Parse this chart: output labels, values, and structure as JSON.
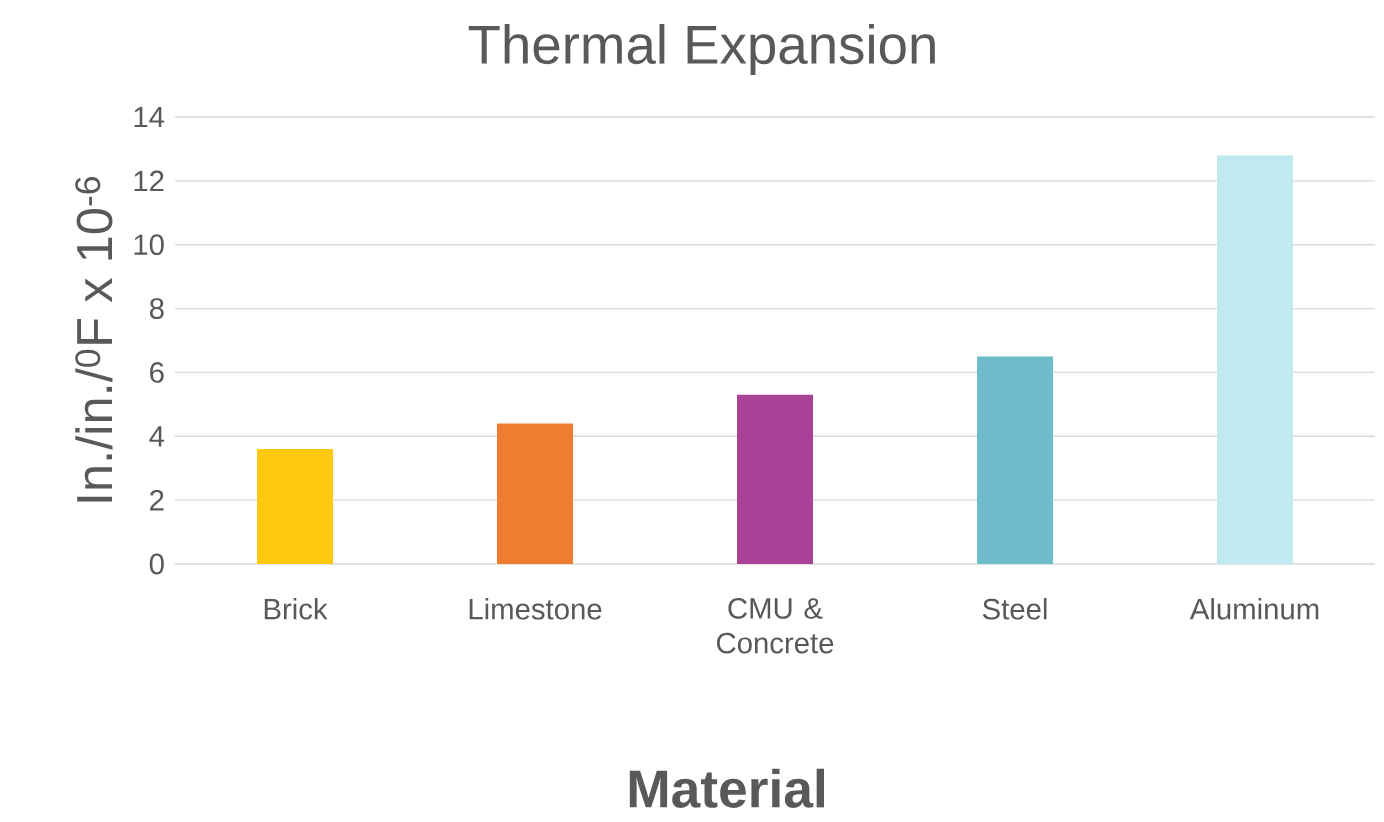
{
  "chart_data": {
    "type": "bar",
    "title": "Thermal Expansion",
    "xlabel": "**Material**",
    "ylabel": "In./in./$^{0}$F x 10$^{-6}$",
    "categories": [
      "Brick",
      "Limestone",
      "CMU & Concrete",
      "Steel",
      "Aluminum"
    ],
    "values": [
      3.6,
      4.4,
      5.3,
      6.5,
      12.8
    ],
    "colors": [
      "#ffc90e",
      "#ed7d31",
      "#a94197",
      "#6ebcca",
      "#bfeaf0"
    ],
    "ylim": [
      0,
      14
    ],
    "yticks": [
      0,
      2,
      4,
      6,
      8,
      10,
      12,
      14
    ],
    "grid": "y"
  }
}
